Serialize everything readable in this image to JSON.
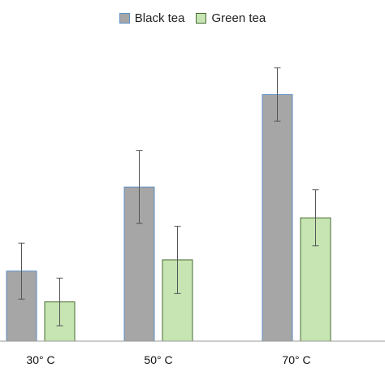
{
  "chart_data": {
    "type": "bar",
    "title": "",
    "xlabel": "",
    "ylabel": "",
    "categories": [
      "30° C",
      "50° C",
      "70° C"
    ],
    "ylim": [
      0,
      100
    ],
    "grid": false,
    "legend_position": "top-center",
    "series": [
      {
        "name": "Black tea",
        "color": "#a6a6a6",
        "edge": "#5b8fc7",
        "values": [
          25,
          55,
          88
        ],
        "err": [
          10,
          13,
          9.5
        ]
      },
      {
        "name": "Green tea",
        "color": "#c6e5b2",
        "edge": "#4a6b32",
        "values": [
          14,
          29,
          44
        ],
        "err": [
          8.5,
          12,
          10
        ]
      }
    ]
  }
}
